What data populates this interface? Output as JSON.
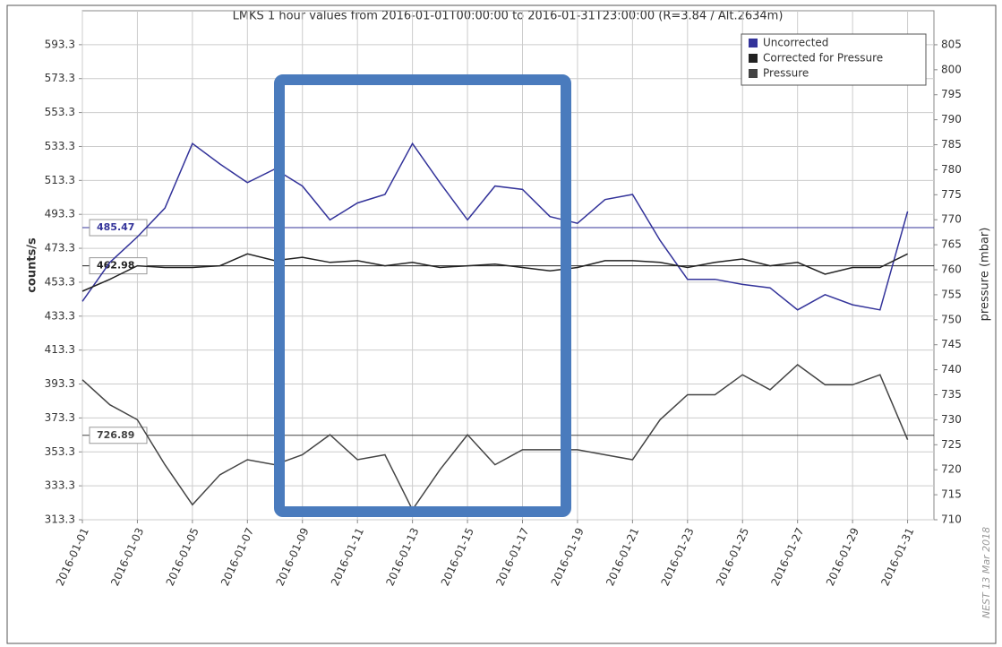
{
  "chart_data": {
    "type": "line",
    "title": "LMKS 1 hour values from 2016-01-01T00:00:00 to 2016-01-31T23:00:00 (R=3.84 / Alt.2634m)",
    "y_label": "counts/s",
    "y2_label": "pressure (mbar)",
    "credit": "NEST  13 Mar 2018",
    "x": [
      "2016-01-01",
      "2016-01-02",
      "2016-01-03",
      "2016-01-04",
      "2016-01-05",
      "2016-01-06",
      "2016-01-07",
      "2016-01-08",
      "2016-01-09",
      "2016-01-10",
      "2016-01-11",
      "2016-01-12",
      "2016-01-13",
      "2016-01-14",
      "2016-01-15",
      "2016-01-16",
      "2016-01-17",
      "2016-01-18",
      "2016-01-19",
      "2016-01-20",
      "2016-01-21",
      "2016-01-22",
      "2016-01-23",
      "2016-01-24",
      "2016-01-25",
      "2016-01-26",
      "2016-01-27",
      "2016-01-28",
      "2016-01-29",
      "2016-01-30",
      "2016-01-31"
    ],
    "xlim": [
      "2016-01-01T00:00:00",
      "2016-01-31T23:00:00"
    ],
    "xticks": [
      "2016-01-01",
      "2016-01-03",
      "2016-01-05",
      "2016-01-07",
      "2016-01-09",
      "2016-01-11",
      "2016-01-13",
      "2016-01-15",
      "2016-01-17",
      "2016-01-19",
      "2016-01-21",
      "2016-01-23",
      "2016-01-25",
      "2016-01-27",
      "2016-01-29",
      "2016-01-31"
    ],
    "ylim": [
      313.3,
      613.3
    ],
    "yticks": [
      313.3,
      333.3,
      353.3,
      373.3,
      393.3,
      413.3,
      433.3,
      453.3,
      473.3,
      493.3,
      513.3,
      533.3,
      553.3,
      573.3,
      593.3
    ],
    "y2lim": [
      710,
      811.8
    ],
    "y2ticks": [
      710,
      715,
      720,
      725,
      730,
      735,
      740,
      745,
      750,
      755,
      760,
      765,
      770,
      775,
      780,
      785,
      790,
      795,
      800,
      805
    ],
    "grid": true,
    "legend": "top-right",
    "series": [
      {
        "name": "Uncorrected",
        "color": "#33339a",
        "values": [
          442,
          465,
          480,
          497,
          535,
          523,
          512,
          520,
          510,
          490,
          500,
          505,
          535,
          512,
          490,
          510,
          508,
          492,
          488,
          502,
          505,
          478,
          455,
          455,
          452,
          450,
          437,
          446,
          440,
          437,
          495
        ]
      },
      {
        "name": "Corrected for Pressure",
        "color": "#222222",
        "values": [
          448,
          455,
          463,
          462,
          462,
          463,
          470,
          466,
          468,
          465,
          466,
          463,
          465,
          462,
          463,
          464,
          462,
          460,
          462,
          466,
          466,
          465,
          462,
          465,
          467,
          463,
          465,
          458,
          462,
          462,
          470
        ]
      },
      {
        "name": "Pressure",
        "color": "#444444",
        "axis": "y2",
        "values": [
          738,
          733,
          730,
          721,
          713,
          719,
          722,
          721,
          723,
          727,
          722,
          723,
          712,
          720,
          727,
          721,
          724,
          724,
          724,
          723,
          722,
          730,
          735,
          735,
          739,
          736,
          741,
          737,
          737,
          739,
          726
        ]
      }
    ],
    "reference_lines": [
      {
        "value": 485.47,
        "color": "#33339a"
      },
      {
        "value": 462.98,
        "color": "#222222"
      },
      {
        "value": 726.89,
        "color": "#444444",
        "axis": "y2"
      }
    ]
  }
}
